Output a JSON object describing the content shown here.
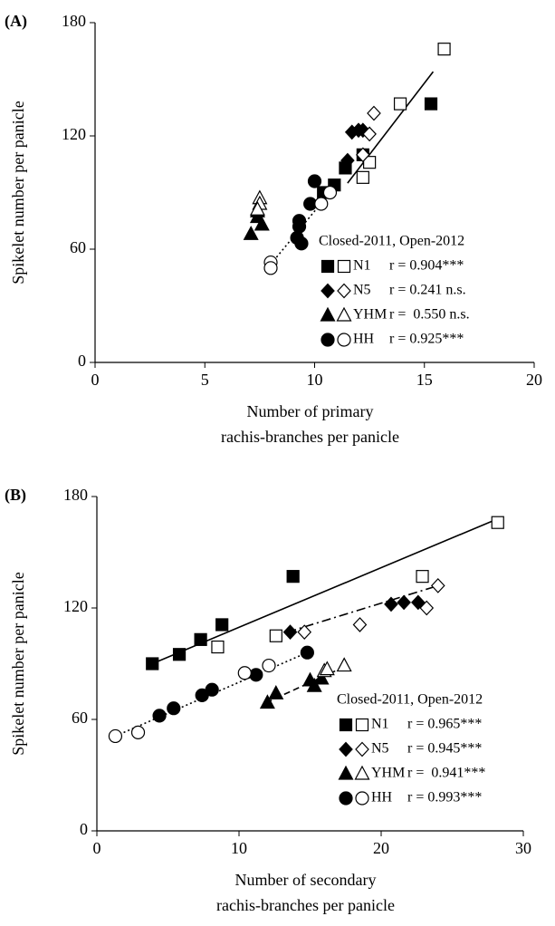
{
  "chart_data": [
    {
      "type": "scatter",
      "panel_label": "(A)",
      "xlabel": [
        "Number of primary",
        "rachis-branches per panicle"
      ],
      "ylabel": "Spikelet number per panicle",
      "xlim": [
        0,
        20
      ],
      "ylim": [
        0,
        180
      ],
      "xticks": [
        0,
        5,
        10,
        15,
        20
      ],
      "yticks": [
        0,
        60,
        120,
        180
      ],
      "legend_title": "Closed-2011, Open-2012",
      "color": "#000000",
      "groups": [
        {
          "name": "N1",
          "stat": "r = 0.904***",
          "marker": "square",
          "closed": {
            "x": [
              10.4,
              10.9,
              11.4,
              12.2,
              15.3
            ],
            "y": [
              90,
              94,
              103,
              110,
              137
            ]
          },
          "open": {
            "x": [
              12.2,
              12.5,
              13.9,
              15.9
            ],
            "y": [
              98,
              106,
              137,
              166
            ]
          },
          "fit": {
            "x": [
              11.5,
              15.4
            ],
            "y": [
              95,
              154
            ],
            "dash": "solid"
          }
        },
        {
          "name": "N5",
          "stat": "r = 0.241 n.s.",
          "marker": "diamond",
          "closed": {
            "x": [
              11.5,
              11.7,
              12.0,
              12.2
            ],
            "y": [
              107,
              122,
              123,
              123
            ]
          },
          "open": {
            "x": [
              12.2,
              12.5,
              12.7
            ],
            "y": [
              110,
              121,
              132
            ]
          }
        },
        {
          "name": "YHM",
          "stat": "r =  0.550 n.s.",
          "marker": "triangle",
          "closed": {
            "x": [
              7.1,
              7.4,
              7.6,
              7.4
            ],
            "y": [
              68,
              77,
              73,
              80
            ]
          },
          "open": {
            "x": [
              7.5,
              7.5,
              7.4
            ],
            "y": [
              87,
              84,
              81
            ]
          }
        },
        {
          "name": "HH",
          "stat": "r = 0.925***",
          "marker": "circle",
          "closed": {
            "x": [
              10.0,
              9.8,
              9.3,
              9.3,
              9.2,
              9.4
            ],
            "y": [
              96,
              84,
              75,
              72,
              66,
              63
            ]
          },
          "open": {
            "x": [
              8.0,
              8.0,
              10.3,
              10.7
            ],
            "y": [
              53,
              50,
              84,
              90
            ]
          },
          "fit": {
            "x": [
              8.0,
              10.7
            ],
            "y": [
              52,
              90
            ],
            "dash": "dotted"
          }
        }
      ]
    },
    {
      "type": "scatter",
      "panel_label": "(B)",
      "xlabel": [
        "Number of secondary",
        "rachis-branches per panicle"
      ],
      "ylabel": "Spikelet number per panicle",
      "xlim": [
        0,
        30
      ],
      "ylim": [
        0,
        180
      ],
      "xticks": [
        0,
        10,
        20,
        30
      ],
      "yticks": [
        0,
        60,
        120,
        180
      ],
      "legend_title": "Closed-2011, Open-2012",
      "color": "#000000",
      "groups": [
        {
          "name": "N1",
          "stat": "r = 0.965***",
          "marker": "square",
          "closed": {
            "x": [
              3.9,
              5.8,
              7.3,
              8.8,
              13.8
            ],
            "y": [
              90,
              95,
              103,
              111,
              137
            ]
          },
          "open": {
            "x": [
              8.5,
              12.6,
              22.9,
              28.2
            ],
            "y": [
              99,
              105,
              137,
              166
            ]
          },
          "fit": {
            "x": [
              3.9,
              28.2
            ],
            "y": [
              90,
              168
            ],
            "dash": "solid"
          }
        },
        {
          "name": "N5",
          "stat": "r = 0.945***",
          "marker": "diamond",
          "closed": {
            "x": [
              13.6,
              20.7,
              21.6,
              22.6
            ],
            "y": [
              107,
              122,
              123,
              123
            ]
          },
          "open": {
            "x": [
              14.6,
              18.5,
              23.2,
              24.0
            ],
            "y": [
              107,
              111,
              120,
              132
            ]
          },
          "fit": {
            "x": [
              13.4,
              24.0
            ],
            "y": [
              107,
              132
            ],
            "dash": "dashdot"
          }
        },
        {
          "name": "YHM",
          "stat": "r =  0.941***",
          "marker": "triangle",
          "closed": {
            "x": [
              12.0,
              12.6,
              15.0,
              15.3,
              15.8
            ],
            "y": [
              69,
              74,
              81,
              78,
              82
            ]
          },
          "open": {
            "x": [
              16.0,
              16.2,
              17.4
            ],
            "y": [
              86,
              87,
              89
            ]
          },
          "fit": {
            "x": [
              11.9,
              17.6
            ],
            "y": [
              69,
              89
            ],
            "dash": "dashed"
          }
        },
        {
          "name": "HH",
          "stat": "r = 0.993***",
          "marker": "circle",
          "closed": {
            "x": [
              4.4,
              5.4,
              7.4,
              8.1,
              11.2,
              14.8
            ],
            "y": [
              62,
              66,
              73,
              76,
              84,
              96
            ]
          },
          "open": {
            "x": [
              1.3,
              2.9,
              10.4,
              12.1
            ],
            "y": [
              51,
              53,
              85,
              89
            ]
          },
          "fit": {
            "x": [
              1.3,
              14.8
            ],
            "y": [
              51,
              96
            ],
            "dash": "dotted"
          }
        }
      ]
    }
  ]
}
